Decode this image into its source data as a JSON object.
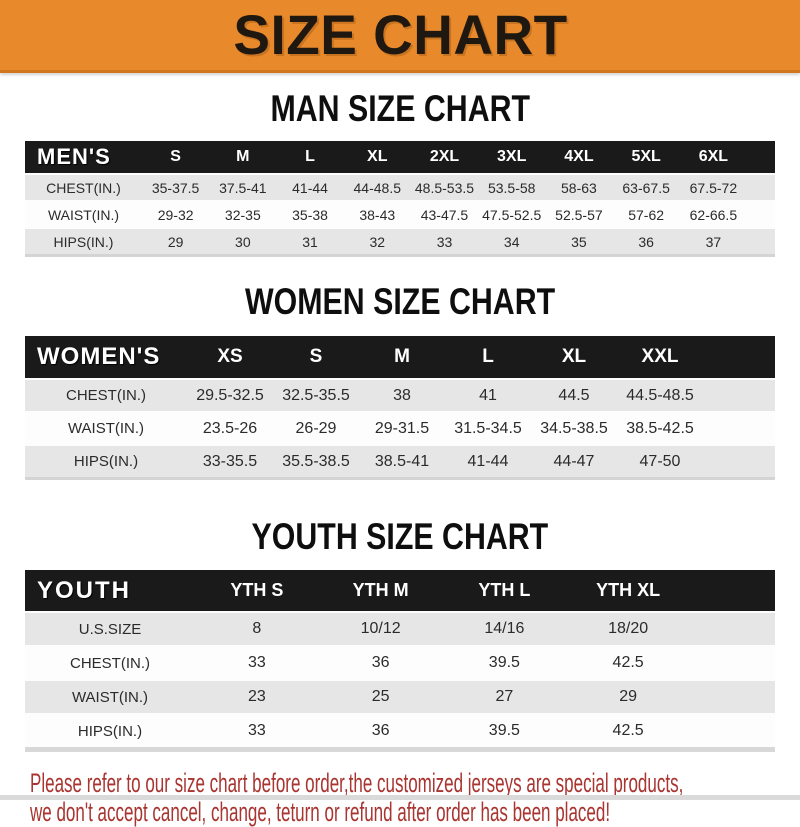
{
  "banner": {
    "title": "SIZE CHART",
    "bg_color": "#E8892B",
    "text_color": "#1F1811"
  },
  "sections": [
    {
      "heading": "MAN SIZE CHART",
      "header_label": "MEN'S",
      "columns": [
        "S",
        "M",
        "L",
        "XL",
        "2XL",
        "3XL",
        "4XL",
        "5XL",
        "6XL"
      ],
      "rows": [
        {
          "label": "CHEST(IN.)",
          "values": [
            "35-37.5",
            "37.5-41",
            "41-44",
            "44-48.5",
            "48.5-53.5",
            "53.5-58",
            "58-63",
            "63-67.5",
            "67.5-72"
          ]
        },
        {
          "label": "WAIST(IN.)",
          "values": [
            "29-32",
            "32-35",
            "35-38",
            "38-43",
            "43-47.5",
            "47.5-52.5",
            "52.5-57",
            "57-62",
            "62-66.5"
          ]
        },
        {
          "label": "HIPS(IN.)",
          "values": [
            "29",
            "30",
            "31",
            "32",
            "33",
            "34",
            "35",
            "36",
            "37"
          ]
        }
      ]
    },
    {
      "heading": "WOMEN SIZE CHART",
      "header_label": "WOMEN'S",
      "columns": [
        "XS",
        "S",
        "M",
        "L",
        "XL",
        "XXL"
      ],
      "rows": [
        {
          "label": "CHEST(IN.)",
          "values": [
            "29.5-32.5",
            "32.5-35.5",
            "38",
            "41",
            "44.5",
            "44.5-48.5"
          ]
        },
        {
          "label": "WAIST(IN.)",
          "values": [
            "23.5-26",
            "26-29",
            "29-31.5",
            "31.5-34.5",
            "34.5-38.5",
            "38.5-42.5"
          ]
        },
        {
          "label": "HIPS(IN.)",
          "values": [
            "33-35.5",
            "35.5-38.5",
            "38.5-41",
            "41-44",
            "44-47",
            "47-50"
          ]
        }
      ]
    },
    {
      "heading": "YOUTH SIZE CHART",
      "header_label": "YOUTH",
      "columns": [
        "YTH S",
        "YTH M",
        "YTH L",
        "YTH XL"
      ],
      "rows": [
        {
          "label": "U.S.SIZE",
          "values": [
            "8",
            "10/12",
            "14/16",
            "18/20"
          ]
        },
        {
          "label": "CHEST(IN.)",
          "values": [
            "33",
            "36",
            "39.5",
            "42.5"
          ]
        },
        {
          "label": "WAIST(IN.)",
          "values": [
            "23",
            "25",
            "27",
            "29"
          ]
        },
        {
          "label": "HIPS(IN.)",
          "values": [
            "33",
            "36",
            "39.5",
            "42.5"
          ]
        }
      ]
    }
  ],
  "footer": {
    "text_color": "#A93430",
    "lines": [
      "Please refer to our size chart before order,the customized jerseys are special products,",
      "we don't accept cancel, change, teturn or refund after order has been placed!"
    ]
  }
}
